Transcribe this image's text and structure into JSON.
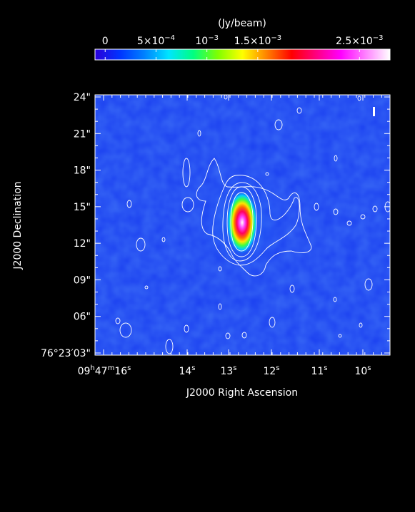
{
  "colorbar": {
    "unit_label": "(Jy/beam)",
    "tick_labels": [
      {
        "value": 0,
        "text_main": "0",
        "text_exp": ""
      },
      {
        "value": 0.0005,
        "text_main": "5×10",
        "text_exp": "−4"
      },
      {
        "value": 0.001,
        "text_main": "10",
        "text_exp": "−3"
      },
      {
        "value": 0.0015,
        "text_main": "1.5×10",
        "text_exp": "−3"
      },
      {
        "value": 0.0025,
        "text_main": "2.5×10",
        "text_exp": "−3"
      }
    ],
    "range": [
      -0.0001,
      0.0028
    ],
    "stops": [
      "#2b00d9",
      "#0033ff",
      "#0080ff",
      "#00e5ff",
      "#00ff80",
      "#80ff00",
      "#ffff00",
      "#ff8000",
      "#ff0000",
      "#ff0080",
      "#ff00ff",
      "#ff80ff",
      "#ffffff"
    ]
  },
  "axes": {
    "xlabel": "J2000 Right Ascension",
    "ylabel": "J2000 Declination",
    "x_ticks": [
      {
        "pos": 0.0,
        "main": "09",
        "sup1": "h",
        "mid": "47",
        "sup2": "m",
        "tail": "16",
        "sup3": "s"
      },
      {
        "pos": 0.15,
        "main": "14",
        "sup1": "s"
      },
      {
        "pos": 0.3,
        "main": "13",
        "sup1": "s"
      },
      {
        "pos": 0.45,
        "main": "12",
        "sup1": "s"
      },
      {
        "pos": 0.6,
        "main": "11",
        "sup1": "s"
      },
      {
        "pos": 0.75,
        "main": "10",
        "sup1": "s"
      }
    ],
    "y_ticks": [
      {
        "label": "24\""
      },
      {
        "label": "21\""
      },
      {
        "label": "18\""
      },
      {
        "label": "15\""
      },
      {
        "label": "12\""
      },
      {
        "label": "09\""
      },
      {
        "label": "06\""
      },
      {
        "label": "76°23′03\""
      }
    ]
  },
  "image": {
    "background_color": "#1a3ff0",
    "source_peak_color": "#ffffff",
    "contour_color": "#ffffff"
  }
}
